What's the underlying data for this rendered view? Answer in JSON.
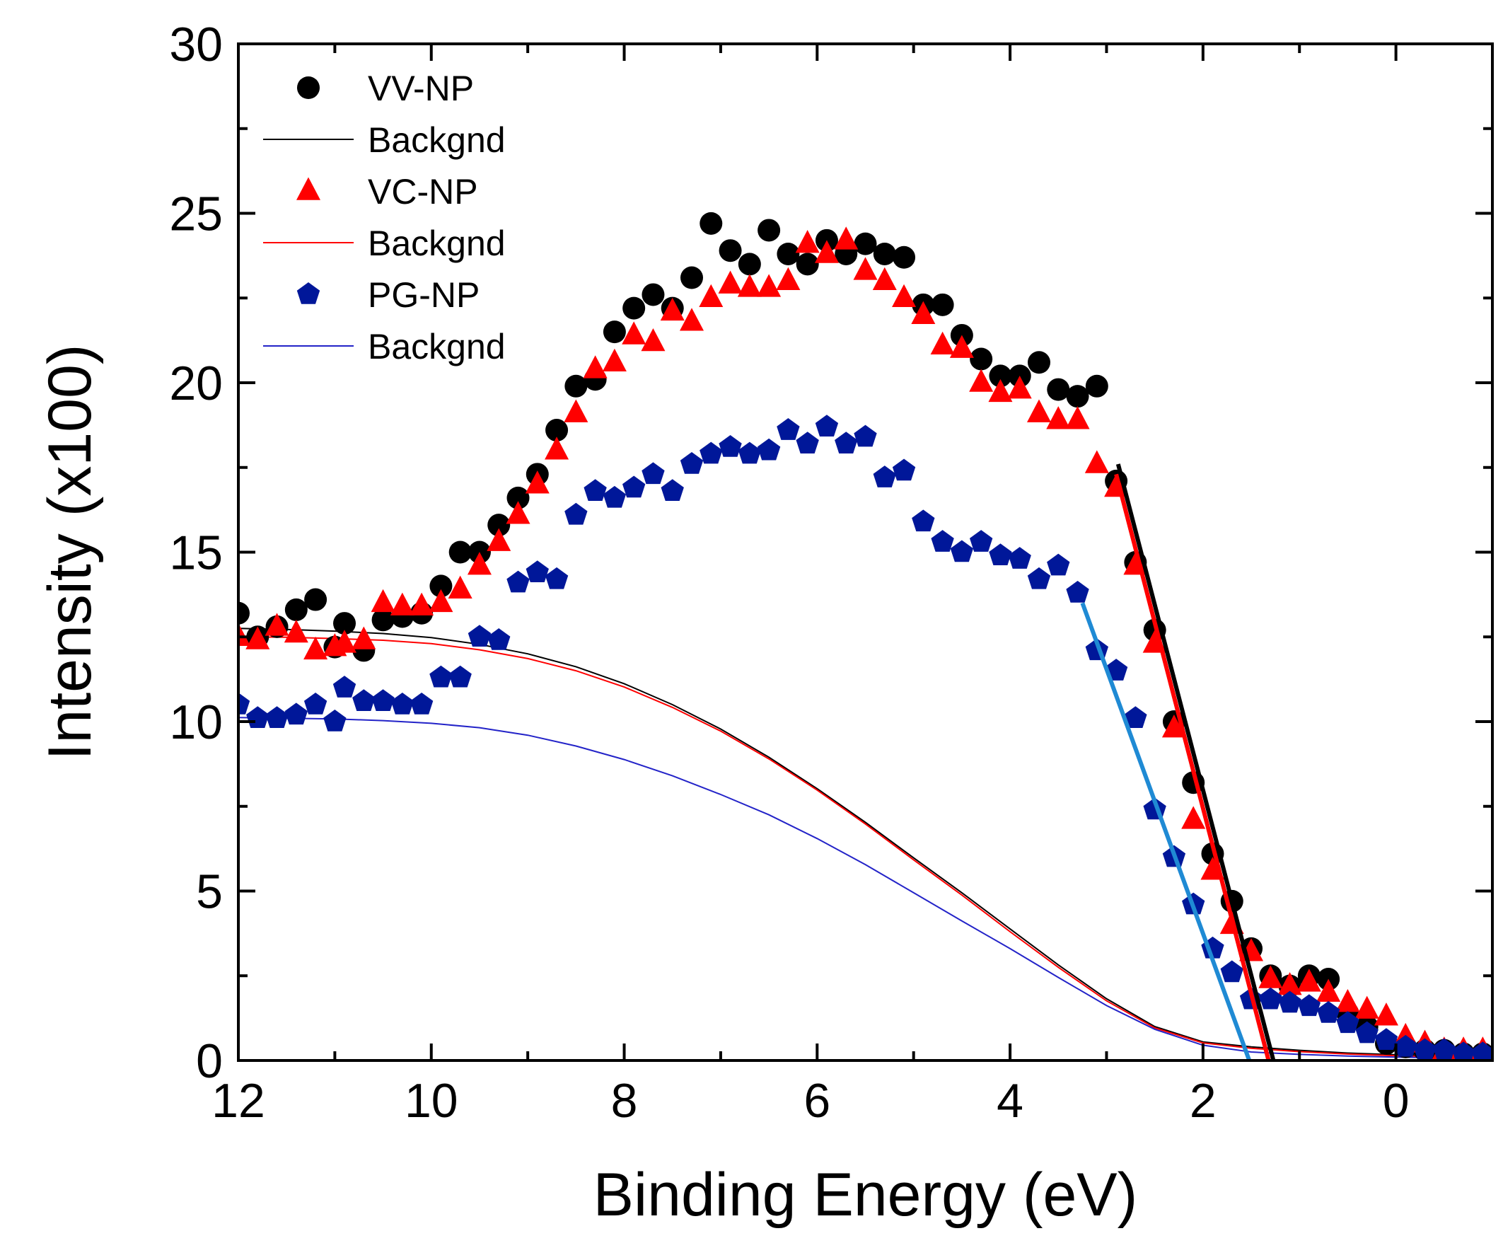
{
  "chart_data": {
    "type": "scatter",
    "title": "",
    "xlabel": "Binding Energy (eV)",
    "ylabel": "Intensity (x100)",
    "xlim": [
      12,
      -1
    ],
    "ylim": [
      0,
      30
    ],
    "x_reversed": true,
    "x_ticks": [
      12,
      10,
      8,
      6,
      4,
      2,
      0
    ],
    "y_ticks": [
      0,
      5,
      10,
      15,
      20,
      25,
      30
    ],
    "legend_position": "top-left",
    "series": [
      {
        "name": "VV-NP",
        "kind": "markers",
        "marker": "circle",
        "color": "#000000",
        "x": [
          12.0,
          11.8,
          11.6,
          11.4,
          11.2,
          11.0,
          10.9,
          10.7,
          10.5,
          10.3,
          10.1,
          9.9,
          9.7,
          9.5,
          9.3,
          9.1,
          8.9,
          8.7,
          8.5,
          8.3,
          8.1,
          7.9,
          7.7,
          7.5,
          7.3,
          7.1,
          6.9,
          6.7,
          6.5,
          6.3,
          6.1,
          5.9,
          5.7,
          5.5,
          5.3,
          5.1,
          4.9,
          4.7,
          4.5,
          4.3,
          4.1,
          3.9,
          3.7,
          3.5,
          3.3,
          3.1,
          2.9,
          2.7,
          2.5,
          2.3,
          2.1,
          1.9,
          1.7,
          1.5,
          1.3,
          1.1,
          0.9,
          0.7,
          0.5,
          0.3,
          0.1,
          -0.1,
          -0.3,
          -0.5,
          -0.7,
          -0.9
        ],
        "y": [
          13.2,
          12.5,
          12.8,
          13.3,
          13.6,
          12.2,
          12.9,
          12.1,
          13.0,
          13.1,
          13.2,
          14.0,
          15.0,
          15.0,
          15.8,
          16.6,
          17.3,
          18.6,
          19.9,
          20.1,
          21.5,
          22.2,
          22.6,
          22.2,
          23.1,
          24.7,
          23.9,
          23.5,
          24.5,
          23.8,
          23.5,
          24.2,
          23.8,
          24.1,
          23.8,
          23.7,
          22.3,
          22.3,
          21.4,
          20.7,
          20.2,
          20.2,
          20.6,
          19.8,
          19.6,
          19.9,
          17.1,
          14.7,
          12.7,
          10.0,
          8.2,
          6.1,
          4.7,
          3.3,
          2.5,
          2.2,
          2.5,
          2.4,
          1.4,
          1.0,
          0.5,
          0.4,
          0.3,
          0.3,
          0.2,
          0.2
        ]
      },
      {
        "name": "Backgnd",
        "kind": "line",
        "color": "#000000",
        "x": [
          12.0,
          11.5,
          11.0,
          10.5,
          10.0,
          9.5,
          9.0,
          8.5,
          8.0,
          7.5,
          7.0,
          6.5,
          6.0,
          5.5,
          5.0,
          4.5,
          4.0,
          3.5,
          3.0,
          2.5,
          2.0,
          1.5,
          1.0,
          0.5,
          0.0,
          -0.5,
          -1.0
        ],
        "y": [
          12.75,
          12.72,
          12.67,
          12.6,
          12.48,
          12.28,
          12.0,
          11.62,
          11.12,
          10.5,
          9.78,
          8.95,
          8.02,
          7.03,
          5.98,
          4.95,
          3.88,
          2.82,
          1.82,
          1.0,
          0.55,
          0.4,
          0.3,
          0.22,
          0.17,
          0.13,
          0.1
        ]
      },
      {
        "name": "VC-NP",
        "kind": "markers",
        "marker": "triangle",
        "color": "#ff0000",
        "x": [
          12.0,
          11.8,
          11.6,
          11.4,
          11.2,
          11.0,
          10.9,
          10.7,
          10.5,
          10.3,
          10.1,
          9.9,
          9.7,
          9.5,
          9.3,
          9.1,
          8.9,
          8.7,
          8.5,
          8.3,
          8.1,
          7.9,
          7.7,
          7.5,
          7.3,
          7.1,
          6.9,
          6.7,
          6.5,
          6.3,
          6.1,
          5.9,
          5.7,
          5.5,
          5.3,
          5.1,
          4.9,
          4.7,
          4.5,
          4.3,
          4.1,
          3.9,
          3.7,
          3.5,
          3.3,
          3.1,
          2.9,
          2.7,
          2.5,
          2.3,
          2.1,
          1.9,
          1.7,
          1.5,
          1.3,
          1.1,
          0.9,
          0.7,
          0.5,
          0.3,
          0.1,
          -0.1,
          -0.3,
          -0.5,
          -0.7,
          -0.9
        ],
        "y": [
          12.5,
          12.4,
          12.8,
          12.6,
          12.1,
          12.2,
          12.3,
          12.4,
          13.5,
          13.4,
          13.4,
          13.5,
          13.9,
          14.6,
          15.3,
          16.1,
          17.0,
          18.0,
          19.1,
          20.4,
          20.6,
          21.4,
          21.2,
          22.1,
          21.8,
          22.5,
          22.9,
          22.8,
          22.8,
          23.0,
          24.1,
          23.8,
          24.2,
          23.3,
          23.0,
          22.5,
          22.0,
          21.1,
          21.0,
          20.0,
          19.7,
          19.8,
          19.1,
          18.9,
          18.9,
          17.6,
          16.9,
          14.6,
          12.3,
          9.8,
          7.1,
          5.6,
          4.0,
          3.2,
          2.4,
          2.2,
          2.3,
          2.0,
          1.7,
          1.5,
          1.3,
          0.7,
          0.5,
          0.3,
          0.3,
          0.3
        ]
      },
      {
        "name": "Backgnd",
        "kind": "line",
        "color": "#ff0000",
        "x": [
          12.0,
          11.5,
          11.0,
          10.5,
          10.0,
          9.5,
          9.0,
          8.5,
          8.0,
          7.5,
          7.0,
          6.5,
          6.0,
          5.5,
          5.0,
          4.5,
          4.0,
          3.5,
          3.0,
          2.5,
          2.0,
          1.5,
          1.0,
          0.5,
          0.0,
          -0.5,
          -1.0
        ],
        "y": [
          12.5,
          12.49,
          12.45,
          12.4,
          12.3,
          12.12,
          11.86,
          11.5,
          11.02,
          10.42,
          9.72,
          8.9,
          7.98,
          6.98,
          5.92,
          4.88,
          3.8,
          2.75,
          1.76,
          0.96,
          0.52,
          0.36,
          0.26,
          0.19,
          0.14,
          0.1,
          0.08
        ]
      },
      {
        "name": "PG-NP",
        "kind": "markers",
        "marker": "pentagon",
        "color": "#001799",
        "x": [
          12.0,
          11.8,
          11.6,
          11.4,
          11.2,
          11.0,
          10.9,
          10.7,
          10.5,
          10.3,
          10.1,
          9.9,
          9.7,
          9.5,
          9.3,
          9.1,
          8.9,
          8.7,
          8.5,
          8.3,
          8.1,
          7.9,
          7.7,
          7.5,
          7.3,
          7.1,
          6.9,
          6.7,
          6.5,
          6.3,
          6.1,
          5.9,
          5.7,
          5.5,
          5.3,
          5.1,
          4.9,
          4.7,
          4.5,
          4.3,
          4.1,
          3.9,
          3.7,
          3.5,
          3.3,
          3.1,
          2.9,
          2.7,
          2.5,
          2.3,
          2.1,
          1.9,
          1.7,
          1.5,
          1.3,
          1.1,
          0.9,
          0.7,
          0.5,
          0.3,
          0.1,
          -0.1,
          -0.3,
          -0.5,
          -0.7,
          -0.9
        ],
        "y": [
          10.5,
          10.1,
          10.1,
          10.2,
          10.5,
          10.0,
          11.0,
          10.6,
          10.6,
          10.5,
          10.5,
          11.3,
          11.3,
          12.5,
          12.4,
          14.1,
          14.4,
          14.2,
          16.1,
          16.8,
          16.6,
          16.9,
          17.3,
          16.8,
          17.6,
          17.9,
          18.1,
          17.9,
          18.0,
          18.6,
          18.2,
          18.7,
          18.2,
          18.4,
          17.2,
          17.4,
          15.9,
          15.3,
          15.0,
          15.3,
          14.9,
          14.8,
          14.2,
          14.6,
          13.8,
          12.1,
          11.5,
          10.1,
          7.4,
          6.0,
          4.6,
          3.3,
          2.6,
          1.8,
          1.8,
          1.7,
          1.6,
          1.4,
          1.1,
          0.8,
          0.6,
          0.4,
          0.3,
          0.3,
          0.2,
          0.2
        ]
      },
      {
        "name": "Backgnd",
        "kind": "line",
        "color": "#2323c8",
        "x": [
          12.0,
          11.5,
          11.0,
          10.5,
          10.0,
          9.5,
          9.0,
          8.5,
          8.0,
          7.5,
          7.0,
          6.5,
          6.0,
          5.5,
          5.0,
          4.5,
          4.0,
          3.5,
          3.0,
          2.5,
          2.0,
          1.5,
          1.0,
          0.5,
          0.0,
          -0.5,
          -1.0
        ],
        "y": [
          10.12,
          10.1,
          10.08,
          10.03,
          9.95,
          9.82,
          9.6,
          9.28,
          8.88,
          8.4,
          7.85,
          7.25,
          6.55,
          5.78,
          4.95,
          4.12,
          3.3,
          2.45,
          1.62,
          0.92,
          0.45,
          0.25,
          0.18,
          0.13,
          0.1,
          0.08,
          0.06
        ]
      }
    ],
    "fit_lines": [
      {
        "color": "#000000",
        "x": [
          2.88,
          1.27
        ],
        "y": [
          17.6,
          0
        ]
      },
      {
        "color": "#ff0000",
        "x": [
          2.9,
          1.32
        ],
        "y": [
          17.3,
          0
        ]
      },
      {
        "color": "#1f8ad4",
        "x": [
          3.25,
          1.52
        ],
        "y": [
          13.5,
          0
        ]
      }
    ]
  }
}
